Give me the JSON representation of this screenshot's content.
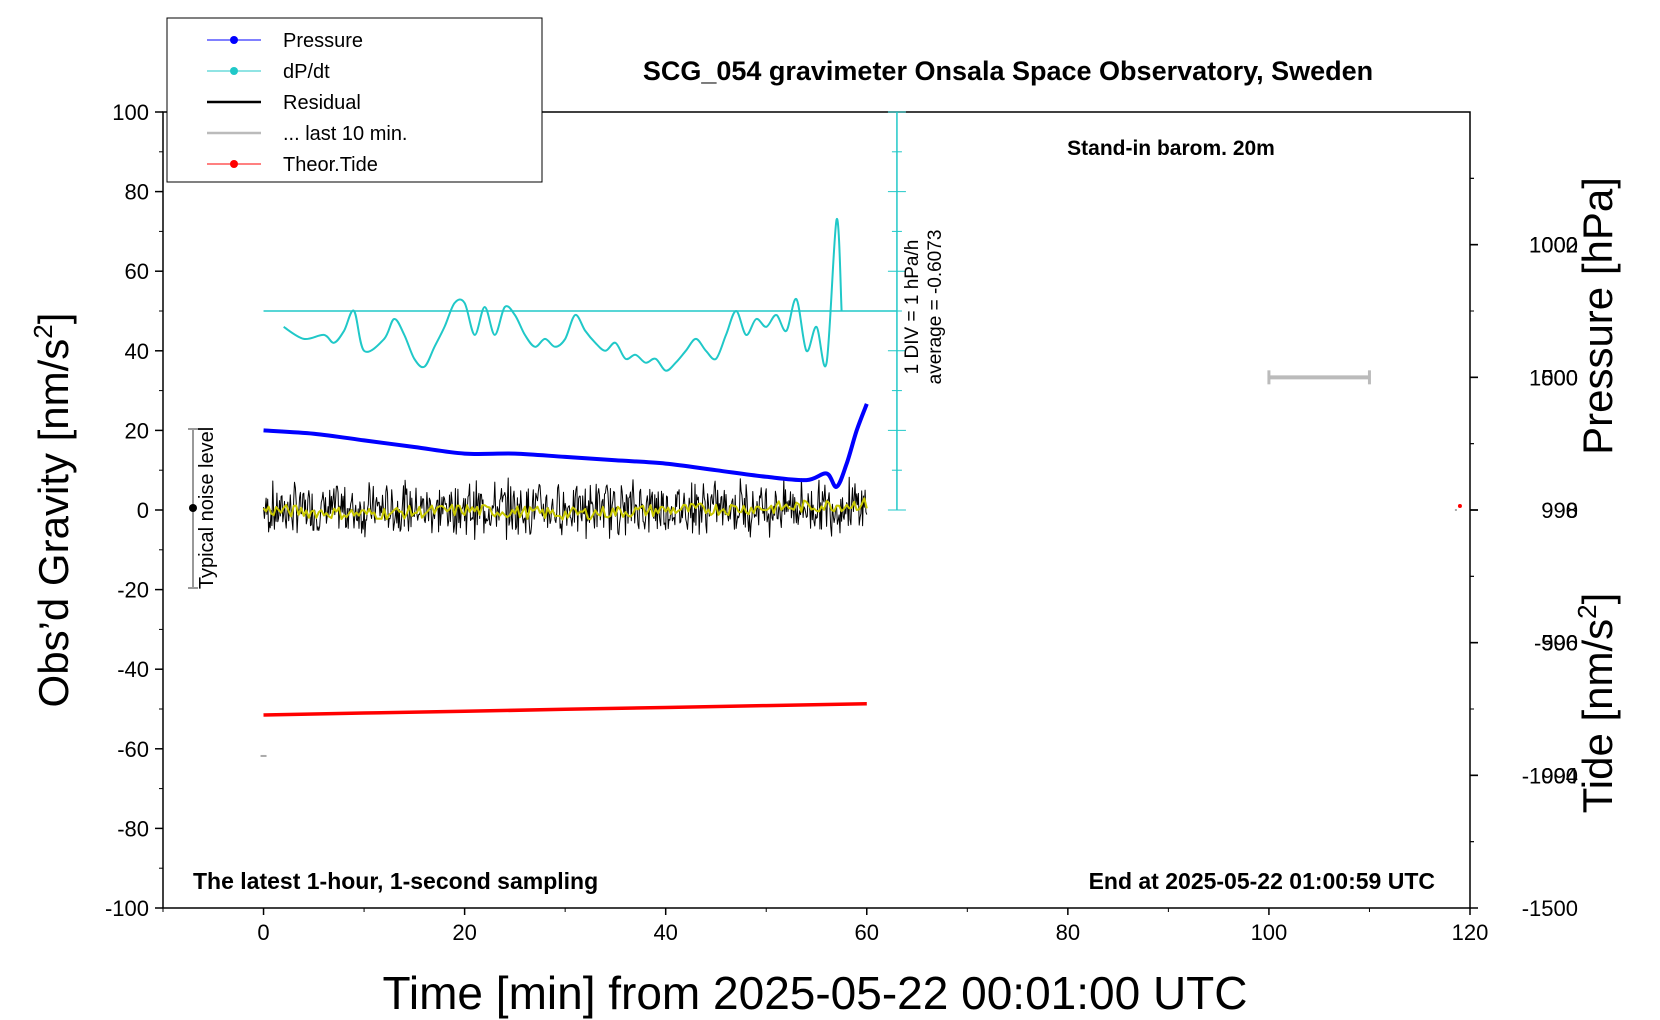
{
  "chart_data": {
    "type": "line",
    "title": "SCG_054 gravimeter Onsala Space Observatory, Sweden",
    "note_top_right": "Stand-in barom. 20m",
    "note_bottom_left": "The latest 1-hour, 1-second sampling",
    "note_bottom_right": "End at 2025-05-22 01:00:59 UTC",
    "xlabel": "Time [min] from 2025-05-22 00:01:00 UTC",
    "ylabel_left_main": "Obs’d Gravity [nm/s",
    "ylabel_left_sup": "2",
    "ylabel_left_close": "]",
    "ylabel_right_top": "Pressure [hPa]",
    "ylabel_right_bottom_main": "Tide [nm/s",
    "ylabel_right_bottom_sup": "2",
    "ylabel_right_bottom_close": "]",
    "noise_label": "Typical noise level",
    "dpdt_scale_line1": "1 DIV = 1 hPa/h",
    "dpdt_scale_line2": "average = -0.6073",
    "xlim": [
      -10,
      120
    ],
    "ylim_left": [
      -100,
      100
    ],
    "ylim_pressure": [
      992,
      1004
    ],
    "ylim_tide": [
      -1500,
      1500
    ],
    "x_ticks": [
      0,
      20,
      40,
      60,
      80,
      100,
      120
    ],
    "x_tick_labels": [
      "0",
      "20",
      "40",
      "60",
      "80",
      "100",
      "120"
    ],
    "y_left_ticks": [
      -100,
      -80,
      -60,
      -40,
      -20,
      0,
      20,
      40,
      60,
      80,
      100
    ],
    "y_left_tick_labels": [
      "-100",
      "-80",
      "-60",
      "-40",
      "-20",
      "0",
      "20",
      "40",
      "60",
      "80",
      "100"
    ],
    "pressure_ticks": [
      994,
      996,
      998,
      1000,
      1002
    ],
    "pressure_tick_labels": [
      "994",
      "996",
      "998",
      "1000",
      "1002"
    ],
    "tide_ticks": [
      -1500,
      -1000,
      -500,
      0,
      500,
      1000
    ],
    "tide_tick_labels": [
      "-1500",
      "-1000",
      "-500",
      "0",
      "500",
      "1000"
    ],
    "legend": [
      {
        "label": "Pressure",
        "color": "#0000ff",
        "style": "line-dot"
      },
      {
        "label": "dP/dt",
        "color": "#20c8c8",
        "style": "line-dot"
      },
      {
        "label": "Residual",
        "color": "#000000",
        "style": "line"
      },
      {
        "label": "... last 10 min.",
        "color": "#bbbbbb",
        "style": "line"
      },
      {
        "label": "Theor.Tide",
        "color": "#ff0000",
        "style": "line-dot"
      }
    ],
    "series": [
      {
        "name": "Pressure",
        "color": "#0000ff",
        "axis": "pressure_hPa",
        "x": [
          0,
          5,
          10,
          15,
          20,
          25,
          30,
          35,
          40,
          45,
          50,
          54,
          56,
          57,
          58,
          59,
          60
        ],
        "y": [
          999.2,
          999.15,
          999.05,
          998.95,
          998.85,
          998.85,
          998.8,
          998.75,
          998.7,
          998.6,
          998.5,
          998.45,
          998.55,
          998.35,
          998.7,
          999.2,
          999.6
        ]
      },
      {
        "name": "dP/dt",
        "color": "#20c8c8",
        "axis": "left_display",
        "x": [
          2,
          4,
          6,
          7,
          8,
          9,
          10,
          12,
          13,
          14,
          15,
          16,
          17,
          18,
          19,
          20,
          21,
          22,
          23,
          24,
          25,
          26,
          27,
          28,
          29,
          30,
          31,
          32,
          33,
          34,
          35,
          36,
          37,
          38,
          39,
          40,
          41,
          42,
          43,
          44,
          45,
          46,
          47,
          48,
          49,
          50,
          51,
          52,
          53,
          54,
          55,
          56,
          57,
          57.5
        ],
        "y": [
          46,
          43,
          44,
          42,
          45,
          50,
          40,
          43,
          48,
          44,
          38,
          36,
          41,
          46,
          52,
          52,
          44,
          51,
          44,
          51,
          49,
          44,
          41,
          43,
          41,
          43,
          49,
          45,
          42,
          40,
          42,
          38,
          39,
          37,
          38,
          35,
          37,
          40,
          43,
          40,
          38,
          44,
          50,
          44,
          48,
          46,
          49,
          45,
          53,
          40,
          46,
          37,
          73,
          50
        ]
      },
      {
        "name": "Residual",
        "color": "#000000",
        "axis": "left",
        "x": [
          0,
          60
        ],
        "y": [
          0,
          1
        ],
        "band_half_width": 8
      },
      {
        "name": "Residual smoothed",
        "color": "#c8c800",
        "axis": "left",
        "x": [
          0,
          10,
          20,
          30,
          40,
          50,
          60
        ],
        "y": [
          0,
          -1,
          0,
          -1,
          0,
          0.5,
          1.5
        ]
      },
      {
        "name": "Theor.Tide",
        "color": "#ff0000",
        "axis": "tide_nm_s2",
        "x": [
          0,
          10,
          20,
          30,
          40,
          50,
          60
        ],
        "y": [
          -50,
          -42,
          -35,
          -27,
          -20,
          -12,
          -5
        ]
      }
    ],
    "dpdt_zero_level": 50,
    "tide_last_point": {
      "x": 119,
      "y": 15
    },
    "tick_marker_right": {
      "x": 118.5,
      "y": 0
    },
    "gray_scale_bar": {
      "x": [
        100,
        110
      ],
      "tide_value": 500
    }
  }
}
